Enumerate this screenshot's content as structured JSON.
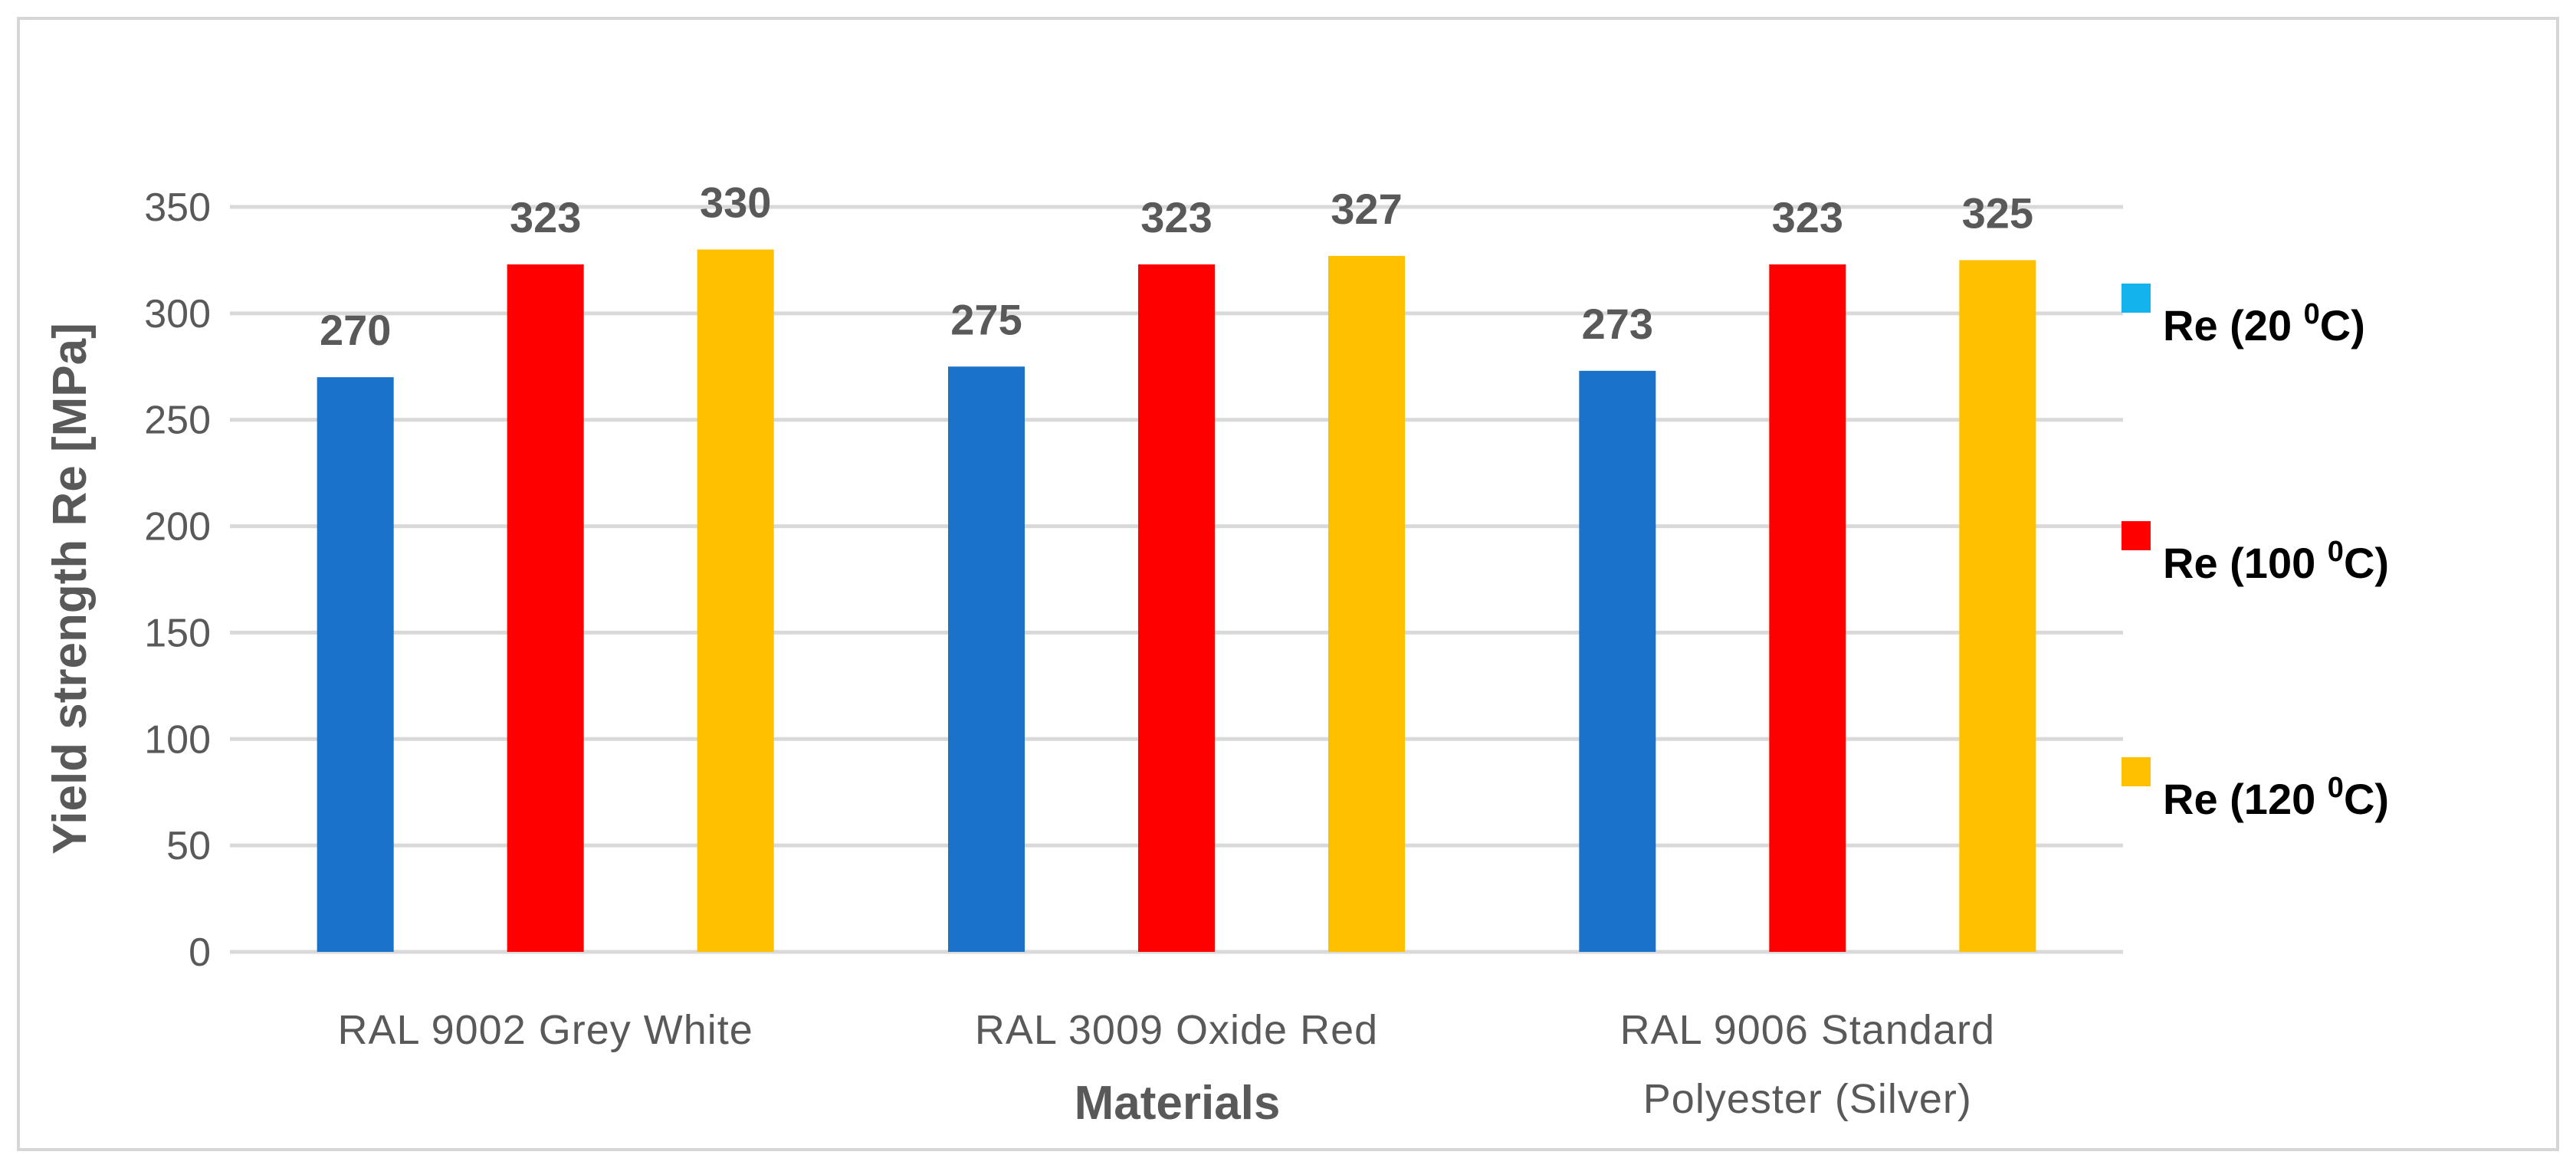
{
  "chart_data": {
    "type": "bar",
    "title": "",
    "xlabel": "Materials",
    "ylabel": "Yield strength  Re [MPa]",
    "ylim": [
      0,
      350
    ],
    "yticks": [
      0,
      50,
      100,
      150,
      200,
      250,
      300,
      350
    ],
    "grid": true,
    "legend_position": "right",
    "categories": [
      [
        "RAL 9002 Grey White"
      ],
      [
        "RAL 3009 Oxide Red"
      ],
      [
        "RAL 9006 Standard",
        "Polyester (Silver)"
      ]
    ],
    "series": [
      {
        "name": "Re (20 ",
        "sup": "0",
        "unit": "C)",
        "color": "#1a72c9",
        "legend_color": "#13b3ee",
        "values": [
          270,
          275,
          273
        ]
      },
      {
        "name": "Re (100 ",
        "sup": "0",
        "unit": "C)",
        "color": "#ff0000",
        "legend_color": "#ff0000",
        "values": [
          323,
          323,
          323
        ]
      },
      {
        "name": "Re (120 ",
        "sup": "0",
        "unit": "C)",
        "color": "#ffc000",
        "legend_color": "#ffc000",
        "values": [
          330,
          327,
          325
        ]
      }
    ]
  }
}
